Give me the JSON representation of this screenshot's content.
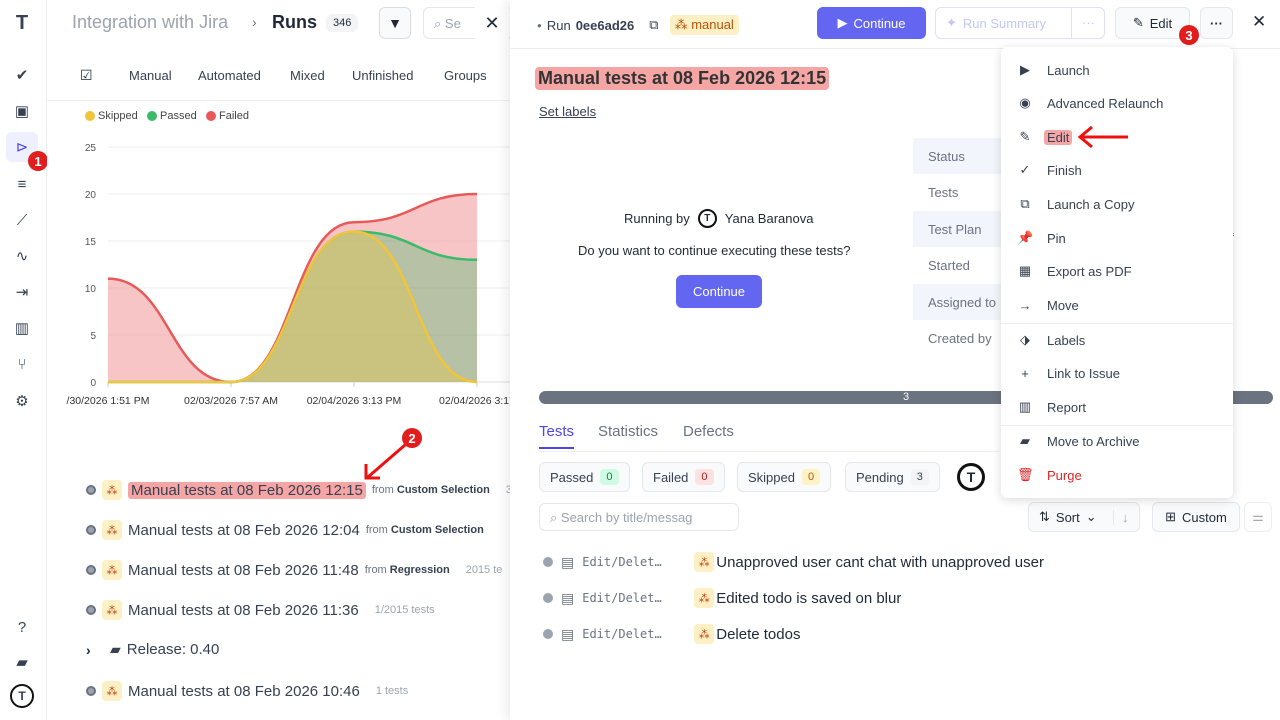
{
  "sidebar": {
    "items": [
      "logo",
      "check",
      "briefcase",
      "runs",
      "list",
      "steps",
      "pulse",
      "import",
      "analytics",
      "branches",
      "settings",
      "help",
      "folder",
      "avatar"
    ],
    "badge": "1"
  },
  "header": {
    "breadcrumb_parent": "Integration with Jira",
    "breadcrumb_sep": "›",
    "title": "Runs",
    "count": "346",
    "search_placeholder": "Se"
  },
  "filters": [
    "Manual",
    "Automated",
    "Mixed",
    "Unfinished",
    "Groups"
  ],
  "chart_data": {
    "type": "area",
    "stacked": true,
    "categories": [
      "/30/2026 1:51 PM",
      "02/03/2026 7:57 AM",
      "02/04/2026 3:13 PM",
      "02/04/2026 3:17"
    ],
    "series": [
      {
        "name": "Skipped",
        "color": "#f0c53a",
        "values": [
          0,
          0,
          16,
          0
        ]
      },
      {
        "name": "Passed",
        "color": "#3cb96a",
        "values": [
          0,
          0,
          0,
          13
        ]
      },
      {
        "name": "Failed",
        "color": "#e85a5a",
        "values": [
          11,
          0,
          1,
          7
        ]
      }
    ],
    "ylim": [
      0,
      25
    ],
    "yticks": [
      "0",
      "5",
      "10",
      "15",
      "20",
      "25"
    ],
    "grid": true,
    "legend": "top-left"
  },
  "runs": [
    {
      "title": "Manual tests at 08 Feb 2026 12:15",
      "from": "from ",
      "source": "Custom Selection",
      "extra": "3",
      "highlight": true
    },
    {
      "title": "Manual tests at 08 Feb 2026 12:04",
      "from": "from ",
      "source": "Custom Selection",
      "extra": ""
    },
    {
      "title": "Manual tests at 08 Feb 2026 11:48",
      "from": "from ",
      "source": "Regression",
      "extra": "2015 te"
    },
    {
      "title": "Manual tests at 08 Feb 2026 11:36",
      "from": "",
      "source": "",
      "extra": "1/2015 tests"
    },
    {
      "folder": "Release: 0.40"
    },
    {
      "title": "Manual tests at 08 Feb 2026 10:46",
      "from": "",
      "source": "",
      "extra": "1 tests"
    }
  ],
  "annotations": {
    "a2": "2",
    "a3": "3"
  },
  "detail": {
    "run_label": "Run",
    "run_id": "0ee6ad26",
    "type_badge": "manual",
    "continue": "Continue",
    "run_summary": "Run Summary",
    "edit": "Edit",
    "title": "Manual tests at 08 Feb 2026 12:15",
    "set_labels": "Set labels",
    "running_by": "Running by",
    "user": "Yana Baranova",
    "question": "Do you want to continue executing these tests?",
    "continue2": "Continue",
    "meta": [
      "Status",
      "Tests",
      "Test Plan",
      "Started",
      "Assigned to",
      "Created by"
    ],
    "plan_fragment": "3-a",
    "progress": {
      "value": "3",
      "pending_fraction": 1
    },
    "tabs": [
      "Tests",
      "Statistics",
      "Defects"
    ],
    "chips": [
      {
        "label": "Passed",
        "count": "0"
      },
      {
        "label": "Failed",
        "count": "0"
      },
      {
        "label": "Skipped",
        "count": "0"
      },
      {
        "label": "Pending",
        "count": "3"
      }
    ],
    "search_placeholder": "Search by title/messag",
    "sort": "Sort",
    "custom": "Custom",
    "tests": [
      {
        "suite": "Edit/Delet…",
        "title": "Unapproved user cant chat with unapproved user"
      },
      {
        "suite": "Edit/Delet…",
        "title": "Edited todo is saved on blur"
      },
      {
        "suite": "Edit/Delet…",
        "title": "Delete todos"
      }
    ]
  },
  "menu": [
    "Launch",
    "Advanced Relaunch",
    "Edit",
    "Finish",
    "Launch a Copy",
    "Pin",
    "Export as PDF",
    "Move",
    "Labels",
    "Link to Issue",
    "Report",
    "Move to Archive",
    "Purge"
  ]
}
